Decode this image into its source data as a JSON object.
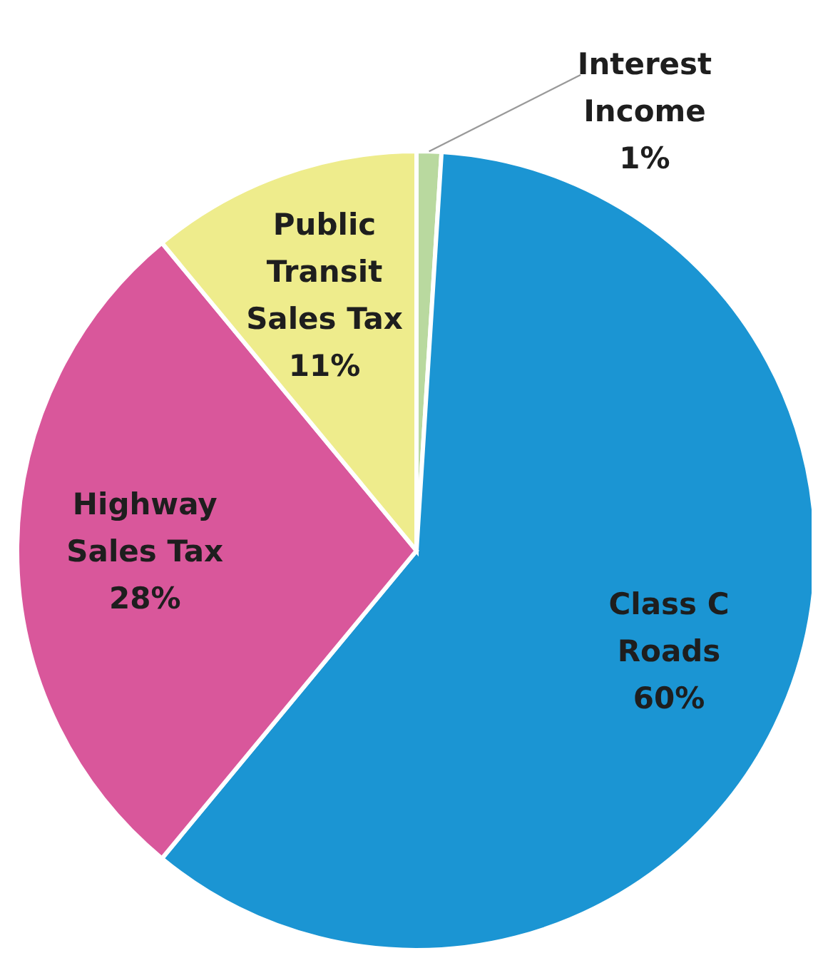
{
  "chart_data": {
    "type": "pie",
    "categories": [
      "Interest Income",
      "Class C Roads",
      "Highway Sales Tax",
      "Public Transit Sales Tax"
    ],
    "values": [
      1,
      60,
      28,
      11
    ],
    "colors": [
      "#b9d99f",
      "#1b95d3",
      "#d9579b",
      "#eeec8c"
    ],
    "value_labels": [
      "1%",
      "60%",
      "28%",
      "11%"
    ]
  }
}
